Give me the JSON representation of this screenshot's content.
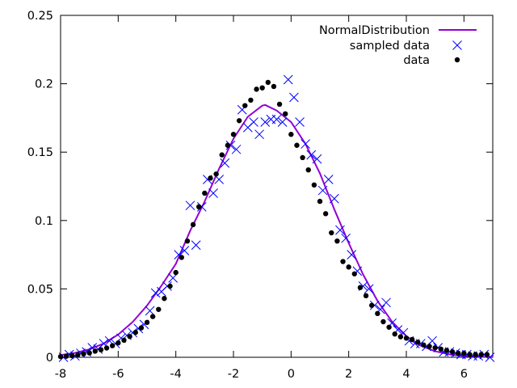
{
  "chart_data": {
    "type": "scatter",
    "title": "",
    "xlabel": "",
    "ylabel": "",
    "xlim": [
      -8,
      7
    ],
    "ylim": [
      0,
      0.25
    ],
    "xticks": [
      -8,
      -6,
      -4,
      -2,
      0,
      2,
      4,
      6
    ],
    "yticks": [
      0,
      0.05,
      0.1,
      0.15,
      0.2,
      0.25
    ],
    "xtick_labels": [
      "-8",
      "-6",
      "-4",
      "-2",
      "0",
      "2",
      "4",
      "6"
    ],
    "ytick_labels": [
      "0",
      "0.05",
      "0.1",
      "0.15",
      "0.2",
      "0.25"
    ],
    "grid": false,
    "legend_position": "top-right",
    "series": [
      {
        "name": "NormalDistribution",
        "kind": "line",
        "color": "#9400d3",
        "x": [
          -8.0,
          -7.5,
          -7.0,
          -6.5,
          -6.0,
          -5.5,
          -5.0,
          -4.5,
          -4.0,
          -3.5,
          -3.0,
          -2.5,
          -2.0,
          -1.5,
          -1.0,
          -0.9,
          -0.5,
          0.0,
          0.5,
          1.0,
          1.5,
          2.0,
          2.5,
          3.0,
          3.5,
          4.0,
          4.5,
          5.0,
          5.5,
          6.0,
          6.5,
          7.0
        ],
        "y": [
          0.0016,
          0.0032,
          0.0058,
          0.0101,
          0.0166,
          0.0258,
          0.0378,
          0.0523,
          0.0683,
          0.0926,
          0.1139,
          0.1378,
          0.1598,
          0.1759,
          0.184,
          0.1845,
          0.1804,
          0.172,
          0.156,
          0.1345,
          0.1082,
          0.0835,
          0.0605,
          0.0412,
          0.0261,
          0.0154,
          0.0085,
          0.0044,
          0.0021,
          0.0009,
          0.0004,
          0.0002
        ]
      },
      {
        "name": "sampled data",
        "kind": "cross",
        "color": "#0000ff",
        "x": [
          -7.9,
          -7.7,
          -7.5,
          -7.3,
          -7.1,
          -6.9,
          -6.7,
          -6.5,
          -6.3,
          -6.1,
          -5.9,
          -5.7,
          -5.5,
          -5.3,
          -5.1,
          -4.9,
          -4.7,
          -4.5,
          -4.3,
          -4.1,
          -3.9,
          -3.7,
          -3.5,
          -3.3,
          -3.1,
          -2.9,
          -2.7,
          -2.5,
          -2.3,
          -2.1,
          -1.9,
          -1.7,
          -1.5,
          -1.3,
          -1.1,
          -0.9,
          -0.7,
          -0.5,
          -0.3,
          -0.1,
          0.1,
          0.3,
          0.5,
          0.7,
          0.9,
          1.1,
          1.3,
          1.5,
          1.7,
          1.9,
          2.1,
          2.3,
          2.5,
          2.7,
          2.9,
          3.1,
          3.3,
          3.5,
          3.7,
          3.9,
          4.1,
          4.3,
          4.5,
          4.7,
          4.9,
          5.1,
          5.3,
          5.5,
          5.7,
          5.9,
          6.1,
          6.3,
          6.5,
          6.7,
          6.9
        ],
        "y": [
          0.0,
          0.002,
          0.001,
          0.003,
          0.004,
          0.007,
          0.006,
          0.01,
          0.012,
          0.01,
          0.014,
          0.016,
          0.018,
          0.021,
          0.024,
          0.034,
          0.047,
          0.048,
          0.052,
          0.058,
          0.075,
          0.078,
          0.111,
          0.082,
          0.11,
          0.13,
          0.12,
          0.13,
          0.142,
          0.155,
          0.152,
          0.181,
          0.168,
          0.172,
          0.163,
          0.172,
          0.174,
          0.174,
          0.172,
          0.203,
          0.19,
          0.172,
          0.156,
          0.148,
          0.145,
          0.122,
          0.13,
          0.116,
          0.093,
          0.087,
          0.075,
          0.063,
          0.052,
          0.05,
          0.038,
          0.035,
          0.04,
          0.025,
          0.02,
          0.018,
          0.012,
          0.01,
          0.01,
          0.008,
          0.012,
          0.007,
          0.004,
          0.004,
          0.003,
          0.002,
          0.002,
          0.001,
          0.001,
          0.002,
          0.0
        ]
      },
      {
        "name": "data",
        "kind": "dot",
        "color": "#000000",
        "x": [
          -8.0,
          -7.8,
          -7.6,
          -7.4,
          -7.2,
          -7.0,
          -6.8,
          -6.6,
          -6.4,
          -6.2,
          -6.0,
          -5.8,
          -5.6,
          -5.4,
          -5.2,
          -5.0,
          -4.8,
          -4.6,
          -4.4,
          -4.2,
          -4.0,
          -3.8,
          -3.6,
          -3.4,
          -3.2,
          -3.0,
          -2.8,
          -2.6,
          -2.4,
          -2.2,
          -2.0,
          -1.8,
          -1.6,
          -1.4,
          -1.2,
          -1.0,
          -0.8,
          -0.6,
          -0.4,
          -0.2,
          0.0,
          0.2,
          0.4,
          0.6,
          0.8,
          1.0,
          1.2,
          1.4,
          1.6,
          1.8,
          2.0,
          2.2,
          2.4,
          2.6,
          2.8,
          3.0,
          3.2,
          3.4,
          3.6,
          3.8,
          4.0,
          4.2,
          4.4,
          4.6,
          4.8,
          5.0,
          5.2,
          5.4,
          5.6,
          5.8,
          6.0,
          6.2,
          6.4,
          6.6,
          6.8
        ],
        "y": [
          0.0005,
          0.0008,
          0.0012,
          0.0018,
          0.0025,
          0.0032,
          0.0045,
          0.0055,
          0.0068,
          0.0085,
          0.0105,
          0.0125,
          0.0152,
          0.0182,
          0.0215,
          0.0255,
          0.0298,
          0.035,
          0.043,
          0.052,
          0.062,
          0.073,
          0.085,
          0.097,
          0.11,
          0.12,
          0.131,
          0.134,
          0.148,
          0.155,
          0.163,
          0.173,
          0.184,
          0.188,
          0.196,
          0.197,
          0.201,
          0.198,
          0.185,
          0.178,
          0.163,
          0.155,
          0.146,
          0.137,
          0.126,
          0.114,
          0.105,
          0.091,
          0.085,
          0.07,
          0.066,
          0.061,
          0.051,
          0.045,
          0.038,
          0.032,
          0.026,
          0.022,
          0.017,
          0.015,
          0.014,
          0.013,
          0.011,
          0.009,
          0.008,
          0.007,
          0.006,
          0.005,
          0.004,
          0.003,
          0.003,
          0.002,
          0.002,
          0.002,
          0.002
        ]
      }
    ]
  }
}
